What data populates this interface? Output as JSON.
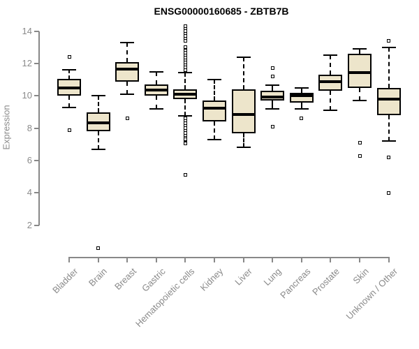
{
  "chart_data": {
    "type": "boxplot",
    "title": "ENSG00000160685 - ZBTB7B",
    "ylabel": "Expression",
    "yticks": [
      14,
      12,
      10,
      8,
      6,
      4,
      2
    ],
    "ylim": [
      2,
      14
    ],
    "grid": false,
    "categories": [
      "Bladder",
      "Brain",
      "Breast",
      "Gastric",
      "Hematopoietic cells",
      "Kidney",
      "Liver",
      "Lung",
      "Pancreas",
      "Prostate",
      "Skin",
      "Unknown / Other"
    ],
    "series": [
      {
        "category": "Bladder",
        "whisker_low": 9.3,
        "q1": 10.0,
        "median": 10.5,
        "q3": 11.05,
        "whisker_high": 11.6,
        "outliers": [
          12.4,
          7.9
        ]
      },
      {
        "category": "Brain",
        "whisker_low": 6.7,
        "q1": 7.8,
        "median": 8.35,
        "q3": 9.0,
        "whisker_high": 10.0,
        "outliers": [
          0.6
        ]
      },
      {
        "category": "Breast",
        "whisker_low": 10.1,
        "q1": 10.9,
        "median": 11.65,
        "q3": 12.1,
        "whisker_high": 13.3,
        "outliers": [
          8.6
        ]
      },
      {
        "category": "Gastric",
        "whisker_low": 9.2,
        "q1": 10.0,
        "median": 10.35,
        "q3": 10.7,
        "whisker_high": 11.5,
        "outliers": []
      },
      {
        "category": "Hematopoietic cells",
        "whisker_low": 8.75,
        "q1": 9.8,
        "median": 10.1,
        "q3": 10.4,
        "whisker_high": 11.45,
        "outliers": [
          14.3,
          14.15,
          14.0,
          13.85,
          13.7,
          13.55,
          13.4,
          13.0,
          12.8,
          12.65,
          12.5,
          12.35,
          12.2,
          12.05,
          11.9,
          11.75,
          11.6,
          8.6,
          8.45,
          8.3,
          8.15,
          8.0,
          7.85,
          7.7,
          7.55,
          7.4,
          7.3,
          7.1,
          7.05,
          5.1
        ]
      },
      {
        "category": "Kidney",
        "whisker_low": 7.3,
        "q1": 8.4,
        "median": 9.25,
        "q3": 9.7,
        "whisker_high": 11.0,
        "outliers": []
      },
      {
        "category": "Liver",
        "whisker_low": 6.8,
        "q1": 7.7,
        "median": 8.85,
        "q3": 10.4,
        "whisker_high": 12.4,
        "outliers": []
      },
      {
        "category": "Lung",
        "whisker_low": 9.2,
        "q1": 9.7,
        "median": 9.95,
        "q3": 10.3,
        "whisker_high": 10.65,
        "outliers": [
          11.7,
          11.2,
          8.1
        ]
      },
      {
        "category": "Pancreas",
        "whisker_low": 9.2,
        "q1": 9.6,
        "median": 10.0,
        "q3": 10.2,
        "whisker_high": 10.5,
        "outliers": [
          8.6
        ]
      },
      {
        "category": "Prostate",
        "whisker_low": 9.1,
        "q1": 10.3,
        "median": 10.9,
        "q3": 11.3,
        "whisker_high": 12.5,
        "outliers": []
      },
      {
        "category": "Skin",
        "whisker_low": 9.7,
        "q1": 10.5,
        "median": 11.45,
        "q3": 12.6,
        "whisker_high": 12.9,
        "outliers": [
          7.1,
          6.3
        ]
      },
      {
        "category": "Unknown / Other",
        "whisker_low": 7.2,
        "q1": 8.8,
        "median": 9.8,
        "q3": 10.5,
        "whisker_high": 13.0,
        "outliers": [
          13.4,
          6.2,
          4.0
        ]
      }
    ],
    "colors": {
      "box_fill": "#EDE5CB",
      "box_border": "#000000",
      "median": "#000000",
      "axis": "#888888",
      "tick_label": "#8a8a8a",
      "title": "#000000",
      "background": "#ffffff"
    }
  }
}
